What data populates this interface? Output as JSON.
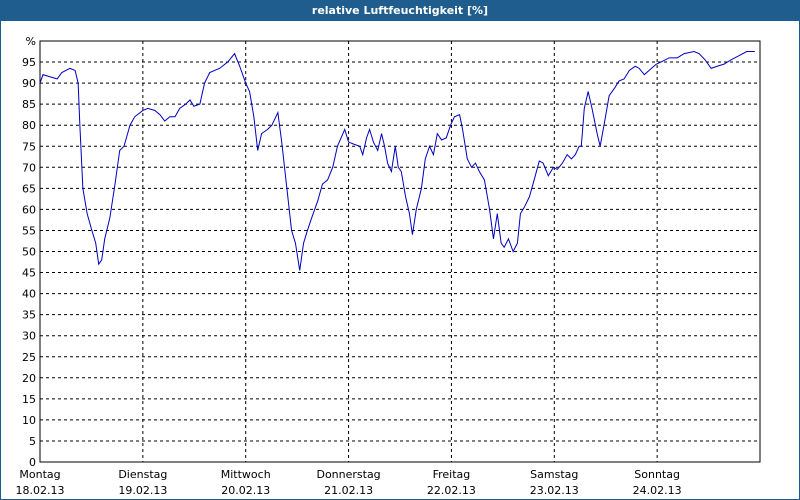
{
  "chart_data": {
    "type": "line",
    "title": "relative Luftfeuchtigkeit [%]",
    "xlim": [
      0,
      168
    ],
    "xticks": [
      {
        "value": 0,
        "label": "Montag"
      },
      {
        "value": 24,
        "label": "Dienstag"
      },
      {
        "value": 48,
        "label": "Mittwoch"
      },
      {
        "value": 72,
        "label": "Donnerstag"
      },
      {
        "value": 96,
        "label": "Freitag"
      },
      {
        "value": 120,
        "label": "Samstag"
      },
      {
        "value": 144,
        "label": "Sonntag"
      }
    ],
    "xtick_dates": [
      "18.02.13",
      "19.02.13",
      "20.02.13",
      "21.02.13",
      "22.02.13",
      "23.02.13",
      "24.02.13"
    ],
    "ylim": [
      0,
      100
    ],
    "yticks": [
      0,
      5,
      10,
      15,
      20,
      25,
      30,
      35,
      40,
      45,
      50,
      55,
      60,
      65,
      70,
      75,
      80,
      85,
      90,
      95,
      {
        "value": 100,
        "label": "%"
      }
    ],
    "grid": true,
    "series": [
      {
        "color": "#0000c0",
        "x": [
          0,
          0.7,
          2.3,
          4.0,
          5.1,
          7.0,
          8.2,
          8.9,
          9.3,
          10.0,
          11.0,
          12.1,
          13.0,
          13.7,
          14.4,
          15.1,
          16.3,
          17.5,
          18.6,
          19.6,
          21.0,
          22.1,
          24.0,
          25.2,
          26.8,
          28.0,
          29.1,
          30.3,
          31.5,
          32.6,
          34.0,
          35.0,
          35.9,
          37.3,
          38.4,
          39.6,
          41.9,
          43.8,
          45.4,
          46.6,
          48.0,
          48.9,
          49.9,
          50.8,
          51.7,
          53.1,
          54.1,
          55.5,
          56.4,
          57.6,
          58.7,
          59.6,
          60.6,
          61.5,
          62.4,
          63.4,
          64.8,
          65.9,
          67.1,
          68.3,
          69.4,
          71.1,
          72.0,
          73.2,
          74.6,
          75.3,
          76.2,
          76.9,
          77.8,
          78.8,
          79.7,
          80.4,
          81.1,
          82.0,
          82.9,
          83.6,
          84.3,
          85.3,
          86.2,
          86.9,
          87.8,
          89.0,
          89.9,
          90.9,
          91.8,
          92.7,
          93.7,
          94.8,
          95.8,
          96.7,
          97.9,
          98.6,
          99.7,
          100.7,
          101.6,
          102.5,
          103.7,
          104.9,
          105.8,
          106.7,
          107.6,
          108.3,
          109.3,
          110.4,
          111.4,
          112.1,
          113.0,
          114.2,
          115.3,
          116.5,
          117.4,
          118.6,
          119.8,
          120.7,
          121.9,
          123.0,
          124.0,
          124.9,
          125.8,
          126.3,
          127.0,
          127.9,
          128.8,
          130.0,
          130.7,
          131.6,
          132.8,
          134.2,
          135.1,
          136.3,
          137.5,
          138.9,
          139.8,
          141.0,
          142.1,
          143.8,
          144.9,
          146.8,
          148.7,
          150.3,
          152.6,
          153.8,
          155.2,
          156.6,
          158.0,
          159.6,
          161.2,
          163.1,
          164.9,
          166.8
        ],
        "values": [
          90,
          92,
          91.5,
          91,
          92.5,
          93.5,
          93,
          90,
          80,
          65,
          59,
          55,
          52,
          47,
          48,
          53,
          58,
          66,
          74,
          75,
          80,
          82,
          83.5,
          84,
          83.5,
          82.5,
          81,
          82,
          82,
          84,
          85,
          86,
          84.5,
          85,
          90,
          92.5,
          93.5,
          95,
          97,
          94,
          90,
          88,
          82,
          74,
          78,
          79,
          80,
          83,
          76,
          65,
          55,
          52,
          45.5,
          52,
          55,
          58,
          62,
          66,
          67,
          70,
          75,
          79,
          76,
          75.5,
          75,
          73,
          77,
          79,
          76,
          74,
          78,
          75,
          71,
          69,
          75,
          70,
          69,
          63,
          59,
          54,
          60,
          65,
          72,
          75,
          73,
          78,
          76.5,
          77,
          80,
          82,
          82.5,
          79,
          72,
          70,
          71,
          69,
          67,
          60,
          53,
          59,
          52,
          51,
          53,
          50,
          52,
          59,
          60.5,
          63,
          67,
          71.5,
          71,
          68,
          70,
          69.5,
          71,
          73,
          72,
          73,
          75,
          75,
          84,
          88,
          84,
          78,
          75,
          80,
          87,
          89,
          90.5,
          91,
          93,
          94,
          93.5,
          92,
          93,
          94.5,
          95,
          96,
          96,
          97,
          97.5,
          97,
          95.5,
          93.5,
          94,
          94.5,
          95.5,
          96.5,
          97.5,
          97.5
        ]
      }
    ]
  }
}
